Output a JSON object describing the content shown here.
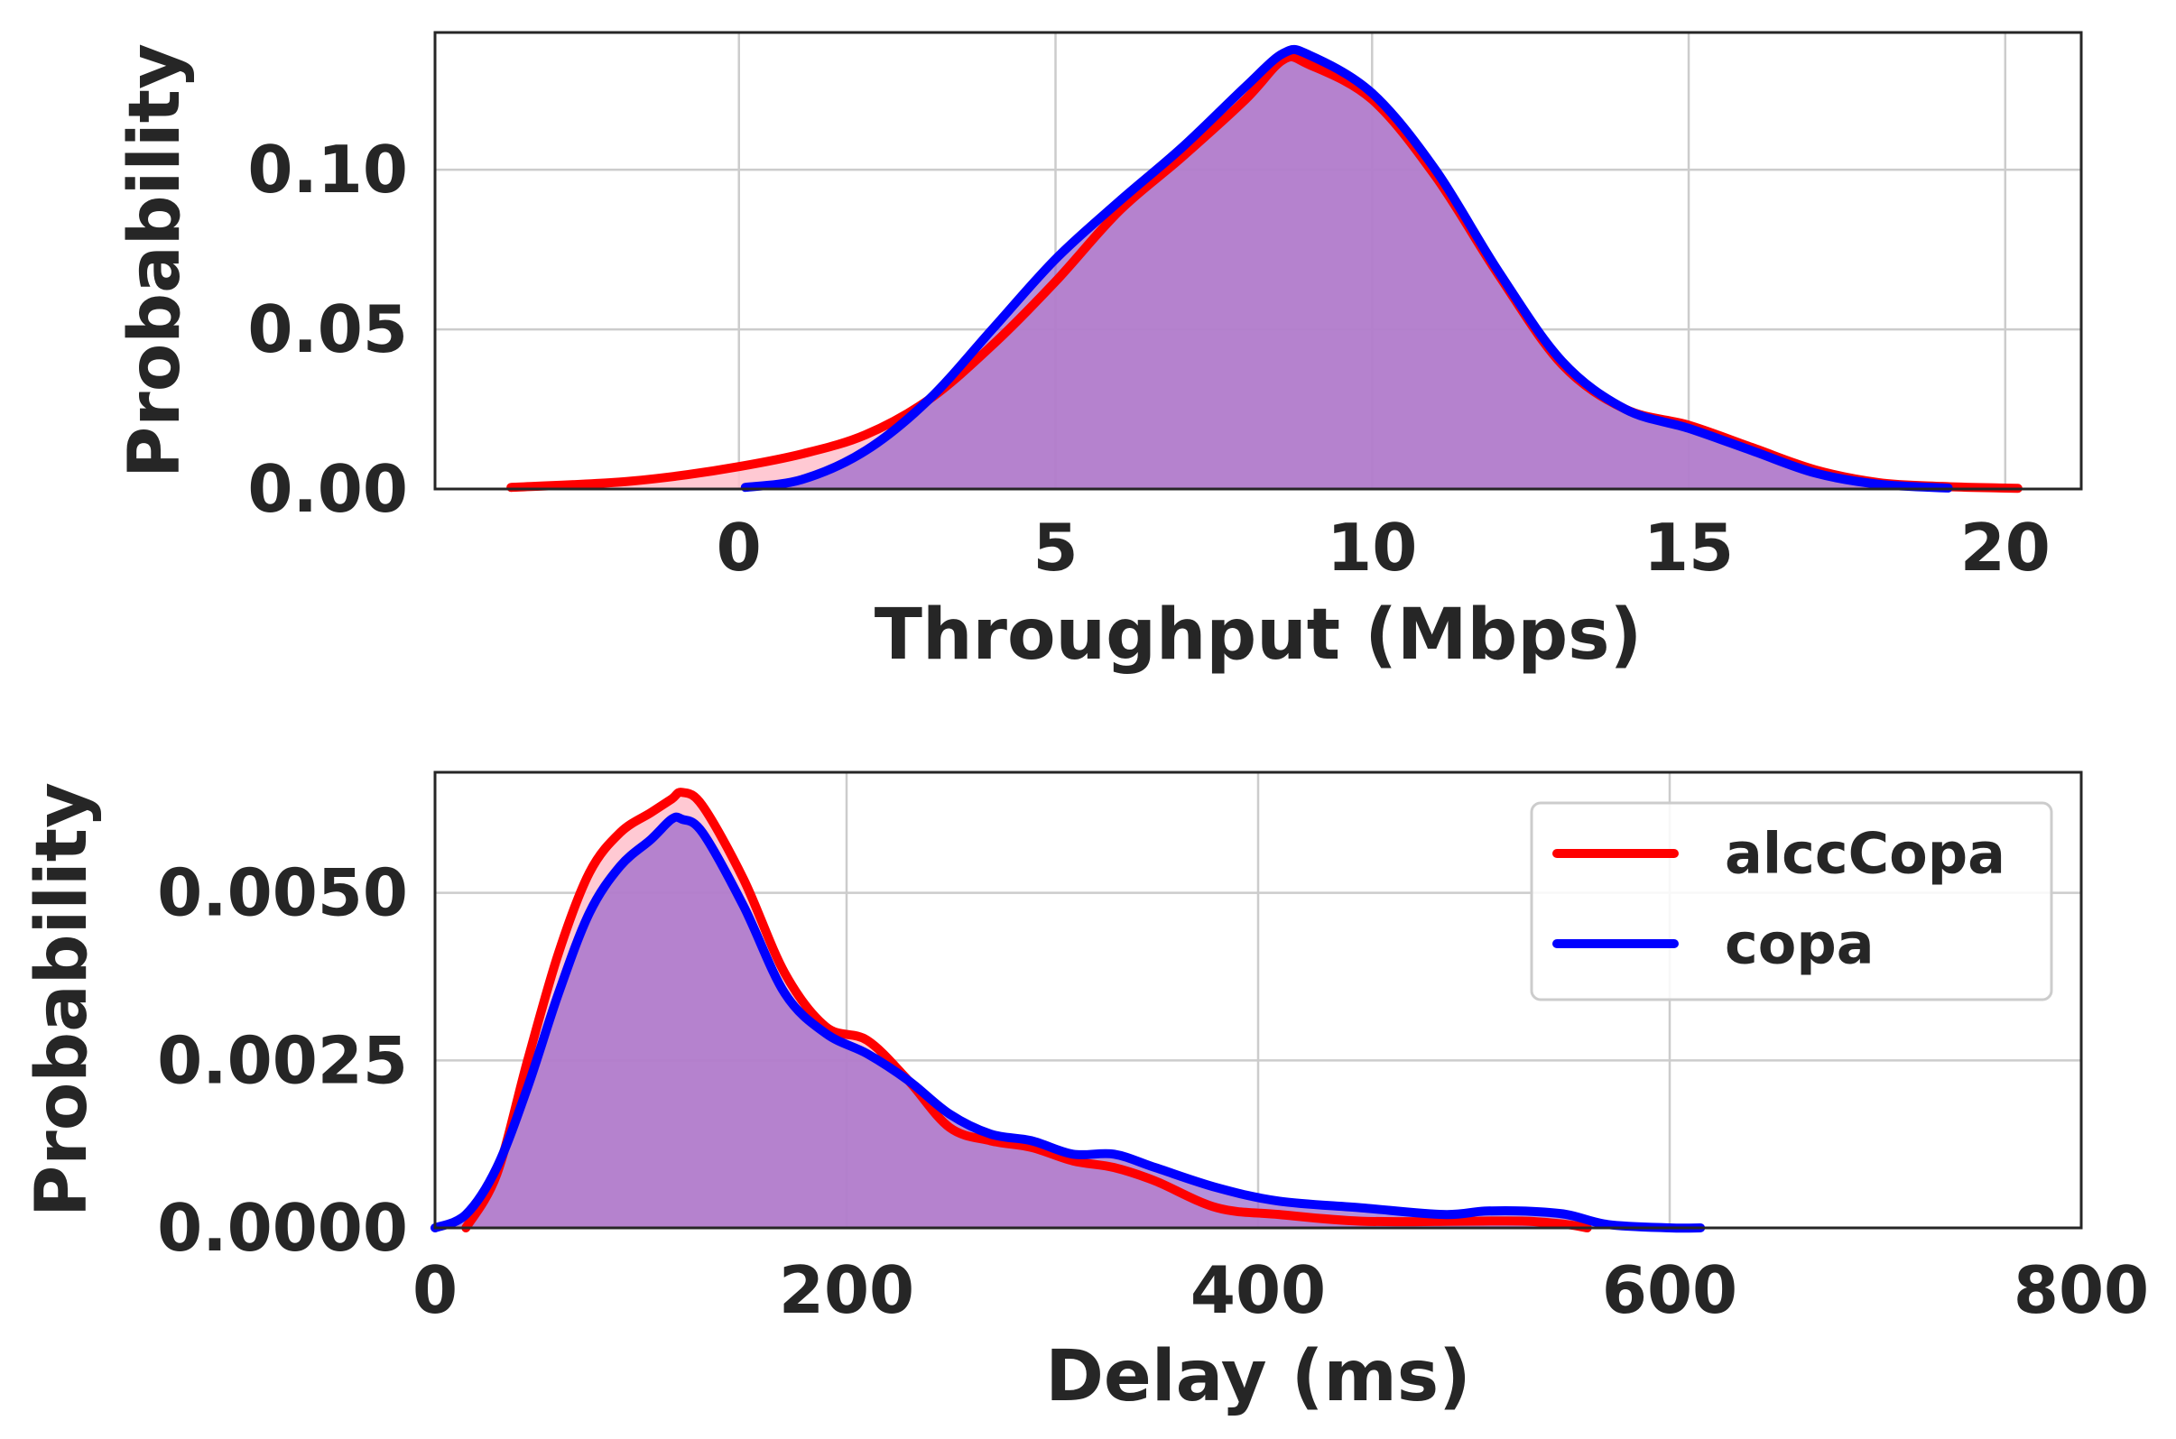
{
  "chart_data": [
    {
      "type": "area",
      "xlabel": "Throughput (Mbps)",
      "ylabel": "Probability",
      "xlim": [
        -4.8,
        21.2
      ],
      "ylim": [
        0,
        0.143
      ],
      "xticks": [
        0,
        5,
        10,
        15,
        20
      ],
      "xtick_labels": [
        "0",
        "5",
        "10",
        "15",
        "20"
      ],
      "yticks": [
        0,
        0.05,
        0.1
      ],
      "ytick_labels": [
        "0.00",
        "0.05",
        "0.10"
      ],
      "grid": true,
      "series": [
        {
          "name": "alccCopa",
          "color": "#ff0000",
          "fill": "#ffc0cb",
          "x": [
            -3.6,
            -2,
            -1,
            0,
            1,
            2,
            3,
            4,
            5,
            6,
            7,
            8,
            8.6,
            9,
            10,
            11,
            12,
            13,
            14,
            15,
            16,
            17,
            18,
            19,
            20,
            20.2
          ],
          "y": [
            0.0005,
            0.002,
            0.004,
            0.007,
            0.011,
            0.017,
            0.028,
            0.045,
            0.065,
            0.087,
            0.104,
            0.122,
            0.1345,
            0.133,
            0.122,
            0.098,
            0.067,
            0.039,
            0.025,
            0.02,
            0.013,
            0.006,
            0.002,
            0.0008,
            0.0003,
            0.0002
          ]
        },
        {
          "name": "copa",
          "color": "#0000ff",
          "fill": "#9966cc",
          "x": [
            0.1,
            1,
            2,
            3,
            4,
            5,
            6,
            7,
            8,
            8.6,
            9,
            10,
            11,
            12,
            13,
            14,
            15,
            16,
            17,
            18,
            19.1
          ],
          "y": [
            0.0005,
            0.003,
            0.012,
            0.028,
            0.05,
            0.072,
            0.09,
            0.107,
            0.126,
            0.1365,
            0.136,
            0.124,
            0.1,
            0.068,
            0.04,
            0.025,
            0.019,
            0.012,
            0.005,
            0.0015,
            0.0003
          ]
        }
      ]
    },
    {
      "type": "area",
      "xlabel": "Delay (ms)",
      "ylabel": "Probability",
      "xlim": [
        0,
        800
      ],
      "ylim": [
        0,
        0.0068
      ],
      "xticks": [
        0,
        200,
        400,
        600,
        800
      ],
      "xtick_labels": [
        "0",
        "200",
        "400",
        "600",
        "800"
      ],
      "yticks": [
        0,
        0.0025,
        0.005
      ],
      "ytick_labels": [
        "0.0000",
        "0.0025",
        "0.0050"
      ],
      "grid": true,
      "legend": {
        "position": "upper right",
        "entries": [
          "alccCopa",
          "copa"
        ]
      },
      "series": [
        {
          "name": "alccCopa",
          "color": "#ff0000",
          "fill": "#ffc0cb",
          "x": [
            15,
            30,
            45,
            60,
            75,
            90,
            105,
            115,
            120,
            130,
            150,
            170,
            190,
            210,
            230,
            250,
            270,
            290,
            310,
            330,
            350,
            380,
            410,
            450,
            500,
            530,
            550,
            560
          ],
          "y": [
            0.0,
            0.0008,
            0.0025,
            0.0041,
            0.0053,
            0.0059,
            0.0062,
            0.0064,
            0.0065,
            0.0063,
            0.0052,
            0.0038,
            0.003,
            0.0028,
            0.0022,
            0.0015,
            0.0013,
            0.0012,
            0.001,
            0.0009,
            0.0007,
            0.0003,
            0.0002,
            0.0001,
            0.0001,
            0.0001,
            5e-05,
            0.0
          ]
        },
        {
          "name": "copa",
          "color": "#0000ff",
          "fill": "#9966cc",
          "x": [
            0,
            15,
            30,
            45,
            60,
            75,
            90,
            105,
            115,
            120,
            130,
            150,
            170,
            190,
            210,
            230,
            250,
            270,
            290,
            310,
            330,
            350,
            380,
            410,
            450,
            490,
            510,
            530,
            550,
            570,
            600,
            615
          ],
          "y": [
            0.0,
            0.0002,
            0.0009,
            0.0021,
            0.0035,
            0.0047,
            0.0054,
            0.0058,
            0.0061,
            0.0061,
            0.0059,
            0.0048,
            0.0035,
            0.0029,
            0.0026,
            0.0022,
            0.0017,
            0.0014,
            0.0013,
            0.0011,
            0.0011,
            0.0009,
            0.0006,
            0.0004,
            0.0003,
            0.0002,
            0.00025,
            0.00025,
            0.0002,
            5e-05,
            0.0,
            0.0
          ]
        }
      ]
    }
  ]
}
